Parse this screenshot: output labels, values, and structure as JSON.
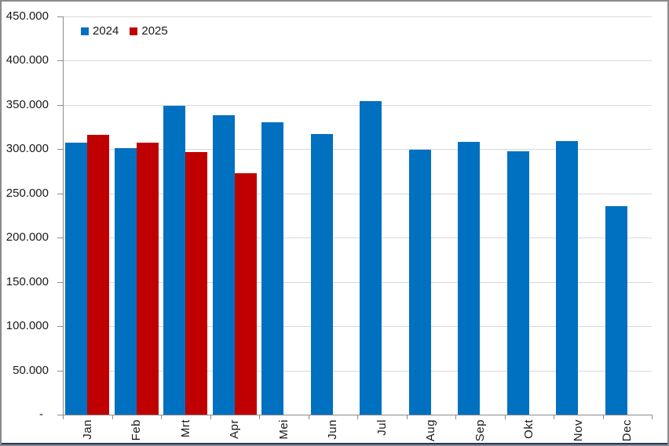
{
  "chart_data": {
    "type": "bar",
    "title": "",
    "xlabel": "",
    "ylabel": "",
    "categories": [
      "Jan",
      "Feb",
      "Mrt",
      "Apr",
      "Mei",
      "Jun",
      "Jul",
      "Aug",
      "Sep",
      "Okt",
      "Nov",
      "Dec"
    ],
    "series": [
      {
        "name": "2024",
        "color": "#0070C0",
        "values": [
          307000,
          301000,
          349000,
          338000,
          330000,
          317000,
          354000,
          299000,
          308000,
          298000,
          309000,
          236000
        ]
      },
      {
        "name": "2025",
        "color": "#C00000",
        "values": [
          316000,
          307000,
          297000,
          273000,
          null,
          null,
          null,
          null,
          null,
          null,
          null,
          null
        ]
      }
    ],
    "ylim": [
      0,
      450000
    ],
    "ytick_interval": 50000,
    "ytick_labels": [
      "-",
      "50.000",
      "100.000",
      "150.000",
      "200.000",
      "250.000",
      "300.000",
      "350.000",
      "400.000",
      "450.000"
    ],
    "grid": true,
    "legend_position": "top-left"
  },
  "colors": {
    "series_2024": "#0070C0",
    "series_2025": "#C00000",
    "gridline": "#D9D9D9",
    "axis": "#8C8C8C",
    "text": "#1A1A1A",
    "outer_border": "#8A8A8A",
    "bottom_edge": "#1F3864"
  }
}
